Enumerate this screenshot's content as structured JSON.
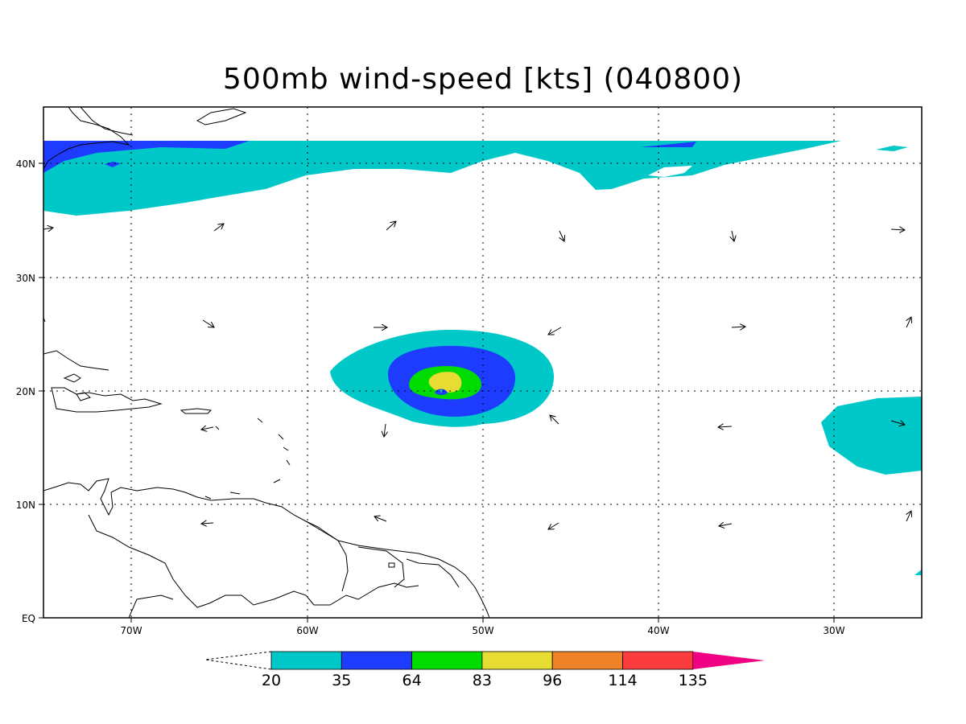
{
  "title": "500mb wind-speed [kts] (040800)",
  "map": {
    "lat_labels": [
      "40N",
      "30N",
      "20N",
      "10N",
      "EQ"
    ],
    "lon_labels": [
      "70W",
      "60W",
      "50W",
      "40W",
      "30W"
    ]
  },
  "colorbar": {
    "labels": [
      "20",
      "35",
      "64",
      "83",
      "96",
      "114",
      "135"
    ],
    "colors": [
      "#00c8c8",
      "#1e3cff",
      "#00dc00",
      "#e6dc32",
      "#f08228",
      "#fa3c3c",
      "#f00082"
    ]
  },
  "colors": {
    "c20": "#00c8c8",
    "c35": "#1e3cff",
    "c64": "#00dc00",
    "c83": "#e6dc32",
    "c96": "#f08228",
    "c114": "#fa3c3c",
    "c135": "#f00082"
  }
}
